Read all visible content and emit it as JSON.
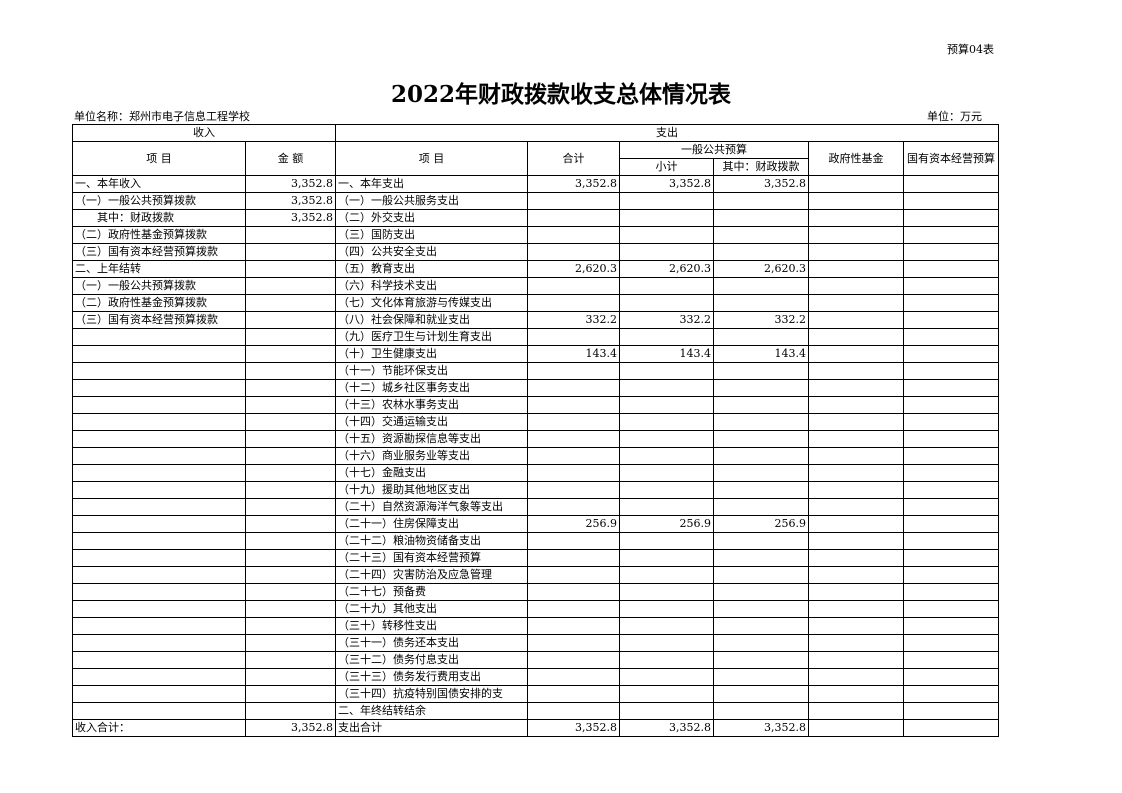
{
  "form_no": "预算04表",
  "title": "2022年财政拨款收支总体情况表",
  "unit_name": "单位名称：郑州市电子信息工程学校",
  "unit": "单位：万元",
  "header": {
    "income": "收入",
    "expense": "支出",
    "item": "项 目",
    "amount": "金 额",
    "expense_item": "项 目",
    "total": "合计",
    "general_budget": "一般公共预算",
    "subtotal": "小计",
    "of_which_fiscal": "其中：财政拨款",
    "gov_fund": "政府性基金",
    "state_capital": "国有资本经营预算"
  },
  "rows": [
    [
      "一、本年收入",
      "3,352.8",
      "一、本年支出",
      "3,352.8",
      "3,352.8",
      "3,352.8",
      "",
      ""
    ],
    [
      "（一）一般公共预算拨款",
      "3,352.8",
      "（一）一般公共服务支出",
      "",
      "",
      "",
      "",
      ""
    ],
    [
      "　　其中：财政拨款",
      "3,352.8",
      "（二）外交支出",
      "",
      "",
      "",
      "",
      ""
    ],
    [
      "（二）政府性基金预算拨款",
      "",
      "（三）国防支出",
      "",
      "",
      "",
      "",
      ""
    ],
    [
      "（三）国有资本经营预算拨款",
      "",
      "（四）公共安全支出",
      "",
      "",
      "",
      "",
      ""
    ],
    [
      "二、上年结转",
      "",
      "（五）教育支出",
      "2,620.3",
      "2,620.3",
      "2,620.3",
      "",
      ""
    ],
    [
      "（一）一般公共预算拨款",
      "",
      "（六）科学技术支出",
      "",
      "",
      "",
      "",
      ""
    ],
    [
      "（二）政府性基金预算拨款",
      "",
      "（七）文化体育旅游与传媒支出",
      "",
      "",
      "",
      "",
      ""
    ],
    [
      "（三）国有资本经营预算拨款",
      "",
      "（八）社会保障和就业支出",
      "332.2",
      "332.2",
      "332.2",
      "",
      ""
    ],
    [
      "",
      "",
      "（九）医疗卫生与计划生育支出",
      "",
      "",
      "",
      "",
      ""
    ],
    [
      "",
      "",
      "（十）卫生健康支出",
      "143.4",
      "143.4",
      "143.4",
      "",
      ""
    ],
    [
      "",
      "",
      "（十一）节能环保支出",
      "",
      "",
      "",
      "",
      ""
    ],
    [
      "",
      "",
      "（十二）城乡社区事务支出",
      "",
      "",
      "",
      "",
      ""
    ],
    [
      "",
      "",
      "（十三）农林水事务支出",
      "",
      "",
      "",
      "",
      ""
    ],
    [
      "",
      "",
      "（十四）交通运输支出",
      "",
      "",
      "",
      "",
      ""
    ],
    [
      "",
      "",
      "（十五）资源勘探信息等支出",
      "",
      "",
      "",
      "",
      ""
    ],
    [
      "",
      "",
      "（十六）商业服务业等支出",
      "",
      "",
      "",
      "",
      ""
    ],
    [
      "",
      "",
      "（十七）金融支出",
      "",
      "",
      "",
      "",
      ""
    ],
    [
      "",
      "",
      "（十九）援助其他地区支出",
      "",
      "",
      "",
      "",
      ""
    ],
    [
      "",
      "",
      "（二十）自然资源海洋气象等支出",
      "",
      "",
      "",
      "",
      ""
    ],
    [
      "",
      "",
      "（二十一）住房保障支出",
      "256.9",
      "256.9",
      "256.9",
      "",
      ""
    ],
    [
      "",
      "",
      "（二十二）粮油物资储备支出",
      "",
      "",
      "",
      "",
      ""
    ],
    [
      "",
      "",
      "（二十三）国有资本经营预算",
      "",
      "",
      "",
      "",
      ""
    ],
    [
      "",
      "",
      "（二十四）灾害防治及应急管理",
      "",
      "",
      "",
      "",
      ""
    ],
    [
      "",
      "",
      "（二十七）预备费",
      "",
      "",
      "",
      "",
      ""
    ],
    [
      "",
      "",
      "（二十九）其他支出",
      "",
      "",
      "",
      "",
      ""
    ],
    [
      "",
      "",
      "（三十）转移性支出",
      "",
      "",
      "",
      "",
      ""
    ],
    [
      "",
      "",
      "（三十一）债务还本支出",
      "",
      "",
      "",
      "",
      ""
    ],
    [
      "",
      "",
      "（三十二）债务付息支出",
      "",
      "",
      "",
      "",
      ""
    ],
    [
      "",
      "",
      "（三十三）债务发行费用支出",
      "",
      "",
      "",
      "",
      ""
    ],
    [
      "",
      "",
      "（三十四）抗疫特别国债安排的支",
      "",
      "",
      "",
      "",
      ""
    ],
    [
      "",
      "",
      "二、年终结转结余",
      "",
      "",
      "",
      "",
      ""
    ],
    [
      "收入合计：",
      "3,352.8",
      "支出合计",
      "3,352.8",
      "3,352.8",
      "3,352.8",
      "",
      ""
    ]
  ]
}
